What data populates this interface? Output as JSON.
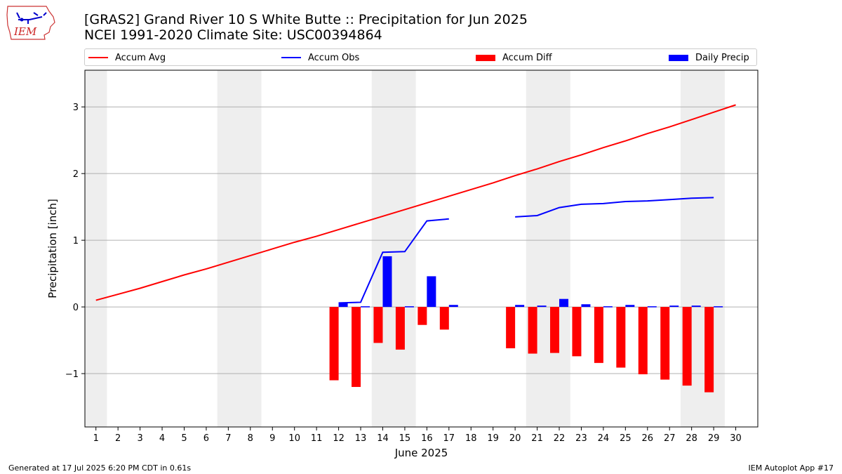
{
  "header": {
    "logo_text": "IEM",
    "title_line1": "[GRAS2] Grand River 10 S White Butte :: Precipitation for Jun 2025",
    "title_line2": "NCEI 1991-2020 Climate Site: USC00394864"
  },
  "legend": {
    "items": [
      {
        "label": "Accum Avg",
        "kind": "line",
        "color": "#ff0000"
      },
      {
        "label": "Accum Obs",
        "kind": "line",
        "color": "#0000ff"
      },
      {
        "label": "Accum Diff",
        "kind": "box",
        "color": "#ff0000"
      },
      {
        "label": "Daily Precip",
        "kind": "box",
        "color": "#0000ff"
      }
    ]
  },
  "footer": {
    "left": "Generated at 17 Jul 2025 6:20 PM CDT in 0.61s",
    "right": "IEM Autoplot App #17"
  },
  "chart_data": {
    "type": "bar",
    "xlabel": "June 2025",
    "ylabel": "Precipitation [inch]",
    "xlim": [
      0.5,
      31.0
    ],
    "ylim": [
      -1.8,
      3.55
    ],
    "yticks": [
      -1,
      0,
      1,
      2,
      3
    ],
    "ytick_labels": [
      "−1",
      "0",
      "1",
      "2",
      "3"
    ],
    "x": [
      1,
      2,
      3,
      4,
      5,
      6,
      7,
      8,
      9,
      10,
      11,
      12,
      13,
      14,
      15,
      16,
      17,
      18,
      19,
      20,
      21,
      22,
      23,
      24,
      25,
      26,
      27,
      28,
      29,
      30
    ],
    "grid": "horizontal",
    "weekend_bands": [
      [
        0.5,
        1.5
      ],
      [
        6.5,
        8.5
      ],
      [
        13.5,
        15.5
      ],
      [
        20.5,
        22.5
      ],
      [
        27.5,
        29.5
      ]
    ],
    "band_color": "#eeeeee",
    "series": [
      {
        "name": "Accum Avg",
        "kind": "line",
        "color": "#ff0000",
        "values": [
          0.1,
          0.19,
          0.28,
          0.38,
          0.48,
          0.57,
          0.67,
          0.77,
          0.87,
          0.97,
          1.06,
          1.16,
          1.26,
          1.36,
          1.46,
          1.56,
          1.66,
          1.76,
          1.86,
          1.97,
          2.07,
          2.18,
          2.28,
          2.39,
          2.49,
          2.6,
          2.7,
          2.81,
          2.92,
          3.03
        ]
      },
      {
        "name": "Accum Obs",
        "kind": "line",
        "color": "#0000ff",
        "values": [
          null,
          null,
          null,
          null,
          null,
          null,
          null,
          null,
          null,
          null,
          null,
          0.06,
          0.07,
          0.82,
          0.83,
          1.29,
          1.32,
          null,
          null,
          1.35,
          1.37,
          1.49,
          1.54,
          1.55,
          1.58,
          1.59,
          1.61,
          1.63,
          1.64,
          null
        ]
      },
      {
        "name": "Accum Diff",
        "kind": "bar",
        "color": "#ff0000",
        "values": [
          null,
          null,
          null,
          null,
          null,
          null,
          null,
          null,
          null,
          null,
          null,
          -1.1,
          -1.2,
          -0.54,
          -0.64,
          -0.27,
          -0.34,
          null,
          null,
          -0.62,
          -0.7,
          -0.69,
          -0.74,
          -0.84,
          -0.91,
          -1.01,
          -1.09,
          -1.18,
          -1.28,
          null
        ]
      },
      {
        "name": "Daily Precip",
        "kind": "bar",
        "color": "#0000ff",
        "values": [
          null,
          null,
          null,
          null,
          null,
          null,
          null,
          null,
          null,
          null,
          null,
          0.06,
          0.01,
          0.76,
          0.01,
          0.46,
          0.03,
          null,
          null,
          0.03,
          0.02,
          0.12,
          0.04,
          0.01,
          0.03,
          0.01,
          0.02,
          0.02,
          0.01,
          null
        ]
      }
    ]
  }
}
